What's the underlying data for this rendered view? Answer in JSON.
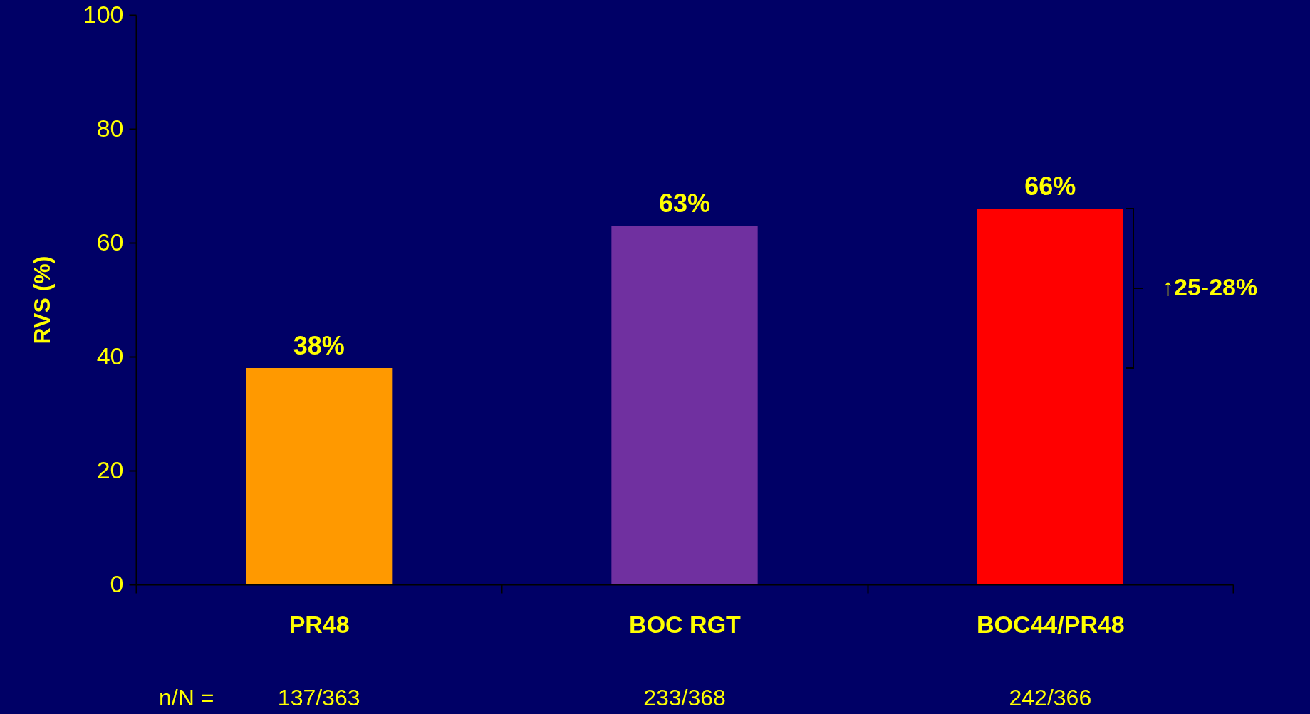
{
  "chart_data": {
    "type": "bar",
    "ylabel": "RVS (%)",
    "categories": [
      "PR48",
      "BOC RGT",
      "BOC44/PR48"
    ],
    "values": [
      38,
      63,
      66
    ],
    "colors": [
      "#ff9900",
      "#7030a0",
      "#ff0000"
    ],
    "value_labels": [
      "38%",
      "63%",
      "66%"
    ],
    "ylim": [
      0,
      100
    ],
    "yticks": [
      0,
      20,
      40,
      60,
      80,
      100
    ],
    "annotations": [
      "n/N =",
      "137/363",
      "233/368",
      "242/366",
      "↑25-28%"
    ]
  }
}
